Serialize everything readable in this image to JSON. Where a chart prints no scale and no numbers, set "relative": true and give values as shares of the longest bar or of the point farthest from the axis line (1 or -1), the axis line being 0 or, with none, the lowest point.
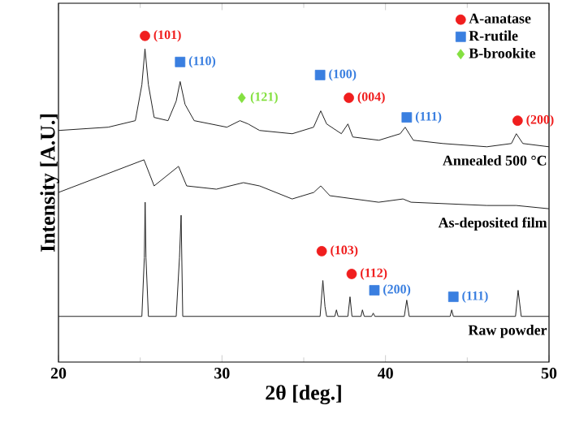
{
  "chart_data": {
    "type": "line",
    "relative": true,
    "xlabel": "2θ [deg.]",
    "ylabel": "Intensity [A.U.]",
    "xlim": [
      20,
      50
    ],
    "xticks": [
      20,
      30,
      40,
      50
    ],
    "legend": "top right",
    "series": [
      {
        "name": "Annealed 500 °C",
        "color": "#222222",
        "x": [
          20,
          23.04,
          24.7,
          25.1,
          25.29,
          25.5,
          25.85,
          26.7,
          27.2,
          27.44,
          27.74,
          28.3,
          30.3,
          31.1,
          31.6,
          32.3,
          34.3,
          35.6,
          36.04,
          36.4,
          37.3,
          37.7,
          38.0,
          39.6,
          40.9,
          41.2,
          41.7,
          43.5,
          46.2,
          47.7,
          48.0,
          48.4,
          50
        ],
        "values": [
          0.71,
          0.72,
          0.74,
          0.85,
          0.96,
          0.85,
          0.75,
          0.74,
          0.8,
          0.86,
          0.79,
          0.74,
          0.72,
          0.74,
          0.73,
          0.71,
          0.7,
          0.72,
          0.77,
          0.73,
          0.7,
          0.73,
          0.69,
          0.68,
          0.7,
          0.72,
          0.68,
          0.67,
          0.66,
          0.67,
          0.7,
          0.67,
          0.66
        ]
      },
      {
        "name": "As-deposited film",
        "color": "#222222",
        "x": [
          20,
          25.23,
          25.85,
          27.34,
          27.84,
          29.66,
          31.31,
          32.3,
          34.29,
          35.61,
          36.04,
          36.6,
          39.58,
          41.07,
          41.56,
          46.19,
          48.0,
          50
        ],
        "values": [
          0.52,
          0.62,
          0.54,
          0.6,
          0.54,
          0.53,
          0.55,
          0.54,
          0.5,
          0.52,
          0.54,
          0.51,
          0.49,
          0.5,
          0.49,
          0.48,
          0.48,
          0.47
        ]
      },
      {
        "name": "Raw powder",
        "color": "#222222",
        "x": [
          20,
          25.1,
          25.25,
          25.3,
          25.35,
          25.5,
          27.2,
          27.4,
          27.5,
          27.6,
          36.0,
          36.17,
          36.3,
          36.4,
          36.9,
          37.0,
          37.1,
          37.7,
          37.83,
          37.95,
          38.5,
          38.59,
          38.7,
          39.15,
          39.25,
          39.35,
          41.15,
          41.3,
          41.45,
          43.95,
          44.05,
          44.15,
          47.95,
          48.11,
          48.3,
          50
        ],
        "values": [
          0.14,
          0.14,
          0.32,
          0.49,
          0.32,
          0.14,
          0.14,
          0.32,
          0.45,
          0.14,
          0.14,
          0.25,
          0.17,
          0.14,
          0.14,
          0.16,
          0.14,
          0.14,
          0.2,
          0.14,
          0.14,
          0.16,
          0.14,
          0.14,
          0.15,
          0.14,
          0.14,
          0.19,
          0.14,
          0.14,
          0.16,
          0.14,
          0.14,
          0.22,
          0.14,
          0.14
        ]
      },
      {
        "type": "scatter",
        "name": "A-anatase",
        "color": "#f01e1e",
        "marker": "circle",
        "x": [
          25.29,
          37.76,
          48.08,
          36.1,
          37.93
        ],
        "values": [
          1.0,
          0.81,
          0.74,
          0.34,
          0.27
        ]
      },
      {
        "type": "scatter",
        "name": "R-rutile",
        "color": "#3a7fe0",
        "marker": "square",
        "x": [
          27.44,
          36.0,
          41.3,
          39.32,
          44.15
        ],
        "values": [
          0.92,
          0.88,
          0.75,
          0.22,
          0.2
        ]
      },
      {
        "type": "scatter",
        "name": "B-brookite",
        "color": "#84e040",
        "marker": "diamond",
        "x": [
          31.21
        ],
        "values": [
          0.81
        ]
      }
    ],
    "annotations": [
      {
        "text": "(101)",
        "x": 25.29,
        "y": 1.0
      },
      {
        "text": "(110)",
        "x": 27.44,
        "y": 0.92
      },
      {
        "text": "(121)",
        "x": 31.21,
        "y": 0.81
      },
      {
        "text": "(100)",
        "x": 36.0,
        "y": 0.88
      },
      {
        "text": "(004)",
        "x": 37.76,
        "y": 0.81
      },
      {
        "text": "(111)",
        "x": 41.3,
        "y": 0.75
      },
      {
        "text": "(200)",
        "x": 48.08,
        "y": 0.74
      },
      {
        "text": "(103)",
        "x": 36.1,
        "y": 0.34
      },
      {
        "text": "(112)",
        "x": 37.93,
        "y": 0.27
      },
      {
        "text": "(200)",
        "x": 39.32,
        "y": 0.22
      },
      {
        "text": "(111)",
        "x": 44.15,
        "y": 0.2
      }
    ]
  }
}
